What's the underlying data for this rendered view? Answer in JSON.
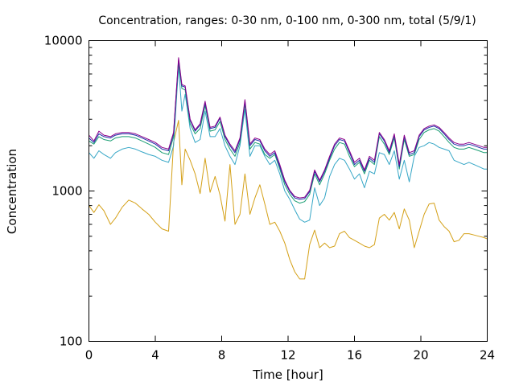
{
  "chart_data": {
    "type": "line",
    "title": "Concentration, ranges: 0-30 nm, 0-100 nm, 0-300 nm, total (5/9/1)",
    "xlabel": "Time [hour]",
    "ylabel": "Concentration",
    "xlim": [
      0,
      24
    ],
    "ylim": [
      100,
      10000
    ],
    "yscale": "log",
    "grid": false,
    "legend": "none",
    "xticks": [
      0,
      4,
      8,
      12,
      16,
      20,
      24
    ],
    "yticks": [
      100,
      1000,
      10000
    ],
    "xtick_labels": [
      "0",
      "4",
      "8",
      "12",
      "16",
      "20",
      "24"
    ],
    "ytick_labels": [
      "100",
      "1000",
      "10000"
    ],
    "series": [
      {
        "color": "#d4a017",
        "x": [
          0,
          0.3,
          0.6,
          0.9,
          1.3,
          1.6,
          2.0,
          2.4,
          2.8,
          3.2,
          3.6,
          4.0,
          4.4,
          4.8,
          5.1,
          5.4,
          5.6,
          5.8,
          6.1,
          6.4,
          6.7,
          7.0,
          7.3,
          7.6,
          7.9,
          8.2,
          8.5,
          8.8,
          9.1,
          9.4,
          9.7,
          10.0,
          10.3,
          10.6,
          10.9,
          11.2,
          11.5,
          11.8,
          12.1,
          12.4,
          12.7,
          13.0,
          13.3,
          13.6,
          13.9,
          14.2,
          14.5,
          14.8,
          15.1,
          15.4,
          15.7,
          16.0,
          16.3,
          16.6,
          16.9,
          17.2,
          17.5,
          17.8,
          18.1,
          18.4,
          18.7,
          19.0,
          19.3,
          19.6,
          19.9,
          20.2,
          20.5,
          20.8,
          21.1,
          21.4,
          21.7,
          22.0,
          22.3,
          22.6,
          22.9,
          23.2,
          23.5,
          23.8,
          24.0
        ],
        "y": [
          800,
          720,
          810,
          740,
          600,
          660,
          780,
          870,
          830,
          760,
          700,
          620,
          560,
          540,
          2100,
          2950,
          1100,
          1900,
          1600,
          1300,
          960,
          1650,
          980,
          1250,
          940,
          630,
          1500,
          600,
          700,
          1300,
          700,
          900,
          1100,
          820,
          600,
          620,
          540,
          450,
          350,
          290,
          260,
          260,
          440,
          550,
          420,
          450,
          420,
          430,
          520,
          540,
          490,
          470,
          450,
          430,
          420,
          440,
          660,
          700,
          640,
          720,
          560,
          760,
          640,
          420,
          540,
          700,
          820,
          830,
          640,
          580,
          540,
          460,
          470,
          520,
          520,
          510,
          500,
          490,
          480
        ]
      },
      {
        "color": "#35a6c6",
        "x": [
          0,
          0.3,
          0.6,
          0.9,
          1.3,
          1.6,
          2.0,
          2.4,
          2.8,
          3.2,
          3.6,
          4.0,
          4.4,
          4.8,
          5.1,
          5.4,
          5.6,
          5.8,
          6.1,
          6.4,
          6.7,
          7.0,
          7.3,
          7.6,
          7.9,
          8.2,
          8.5,
          8.8,
          9.1,
          9.4,
          9.7,
          10.0,
          10.3,
          10.6,
          10.9,
          11.2,
          11.5,
          11.8,
          12.1,
          12.4,
          12.7,
          13.0,
          13.3,
          13.6,
          13.9,
          14.2,
          14.5,
          14.8,
          15.1,
          15.4,
          15.7,
          16.0,
          16.3,
          16.6,
          16.9,
          17.2,
          17.5,
          17.8,
          18.1,
          18.4,
          18.7,
          19.0,
          19.3,
          19.6,
          19.9,
          20.2,
          20.5,
          20.8,
          21.1,
          21.4,
          21.7,
          22.0,
          22.3,
          22.6,
          22.9,
          23.2,
          23.5,
          23.8,
          24.0
        ],
        "y": [
          1800,
          1650,
          1850,
          1750,
          1650,
          1800,
          1900,
          1950,
          1900,
          1820,
          1750,
          1700,
          1600,
          1550,
          2000,
          6800,
          3400,
          4400,
          2600,
          2100,
          2200,
          3400,
          2300,
          2300,
          2600,
          2000,
          1700,
          1500,
          2000,
          3500,
          1700,
          2000,
          2000,
          1700,
          1500,
          1600,
          1300,
          1000,
          880,
          750,
          650,
          620,
          640,
          1050,
          800,
          900,
          1250,
          1500,
          1650,
          1600,
          1400,
          1200,
          1300,
          1050,
          1350,
          1300,
          1800,
          1750,
          1500,
          1850,
          1200,
          1600,
          1150,
          1700,
          1950,
          2000,
          2100,
          2050,
          1950,
          1900,
          1850,
          1600,
          1550,
          1500,
          1550,
          1500,
          1450,
          1400,
          1400
        ]
      },
      {
        "color": "#1a9e73",
        "x": [
          0,
          0.3,
          0.6,
          0.9,
          1.3,
          1.6,
          2.0,
          2.4,
          2.8,
          3.2,
          3.6,
          4.0,
          4.4,
          4.8,
          5.1,
          5.4,
          5.6,
          5.8,
          6.1,
          6.4,
          6.7,
          7.0,
          7.3,
          7.6,
          7.9,
          8.2,
          8.5,
          8.8,
          9.1,
          9.4,
          9.7,
          10.0,
          10.3,
          10.6,
          10.9,
          11.2,
          11.5,
          11.8,
          12.1,
          12.4,
          12.7,
          13.0,
          13.3,
          13.6,
          13.9,
          14.2,
          14.5,
          14.8,
          15.1,
          15.4,
          15.7,
          16.0,
          16.3,
          16.6,
          16.9,
          17.2,
          17.5,
          17.8,
          18.1,
          18.4,
          18.7,
          19.0,
          19.3,
          19.6,
          19.9,
          20.2,
          20.5,
          20.8,
          21.1,
          21.4,
          21.7,
          22.0,
          22.3,
          22.6,
          22.9,
          23.2,
          23.5,
          23.8,
          24.0
        ],
        "y": [
          2150,
          2050,
          2300,
          2200,
          2150,
          2250,
          2300,
          2300,
          2250,
          2150,
          2050,
          1950,
          1800,
          1750,
          2300,
          7100,
          4800,
          4700,
          2800,
          2400,
          2600,
          3700,
          2500,
          2550,
          2900,
          2200,
          1900,
          1700,
          2100,
          3800,
          1900,
          2100,
          2050,
          1750,
          1650,
          1750,
          1400,
          1100,
          950,
          860,
          830,
          850,
          950,
          1300,
          1100,
          1300,
          1600,
          1900,
          2100,
          2050,
          1700,
          1450,
          1550,
          1300,
          1600,
          1500,
          2300,
          2050,
          1750,
          2250,
          1400,
          2200,
          1700,
          1750,
          2200,
          2450,
          2550,
          2600,
          2500,
          2300,
          2100,
          1950,
          1900,
          1900,
          1950,
          1900,
          1850,
          1800,
          1800
        ]
      },
      {
        "color": "#1c2fa8",
        "x": [
          0,
          0.3,
          0.6,
          0.9,
          1.3,
          1.6,
          2.0,
          2.4,
          2.8,
          3.2,
          3.6,
          4.0,
          4.4,
          4.8,
          5.1,
          5.4,
          5.6,
          5.8,
          6.1,
          6.4,
          6.7,
          7.0,
          7.3,
          7.6,
          7.9,
          8.2,
          8.5,
          8.8,
          9.1,
          9.4,
          9.7,
          10.0,
          10.3,
          10.6,
          10.9,
          11.2,
          11.5,
          11.8,
          12.1,
          12.4,
          12.7,
          13.0,
          13.3,
          13.6,
          13.9,
          14.2,
          14.5,
          14.8,
          15.1,
          15.4,
          15.7,
          16.0,
          16.3,
          16.6,
          16.9,
          17.2,
          17.5,
          17.8,
          18.1,
          18.4,
          18.7,
          19.0,
          19.3,
          19.6,
          19.9,
          20.2,
          20.5,
          20.8,
          21.1,
          21.4,
          21.7,
          22.0,
          22.3,
          22.6,
          22.9,
          23.2,
          23.5,
          23.8,
          24.0
        ],
        "y": [
          2250,
          2100,
          2400,
          2300,
          2250,
          2350,
          2400,
          2400,
          2350,
          2250,
          2150,
          2050,
          1900,
          1850,
          2400,
          7500,
          5000,
          4900,
          2950,
          2500,
          2750,
          3850,
          2600,
          2650,
          3050,
          2300,
          2000,
          1800,
          2200,
          3950,
          2000,
          2200,
          2150,
          1850,
          1700,
          1800,
          1450,
          1150,
          990,
          900,
          880,
          890,
          990,
          1350,
          1150,
          1350,
          1650,
          2000,
          2200,
          2150,
          1800,
          1500,
          1600,
          1350,
          1650,
          1550,
          2400,
          2150,
          1800,
          2350,
          1450,
          2300,
          1750,
          1800,
          2300,
          2550,
          2650,
          2700,
          2600,
          2400,
          2200,
          2050,
          2000,
          2000,
          2050,
          2000,
          1950,
          1900,
          1900
        ]
      },
      {
        "color": "#8b008b",
        "x": [
          0,
          0.3,
          0.6,
          0.9,
          1.3,
          1.6,
          2.0,
          2.4,
          2.8,
          3.2,
          3.6,
          4.0,
          4.4,
          4.8,
          5.1,
          5.4,
          5.6,
          5.8,
          6.1,
          6.4,
          6.7,
          7.0,
          7.3,
          7.6,
          7.9,
          8.2,
          8.5,
          8.8,
          9.1,
          9.4,
          9.7,
          10.0,
          10.3,
          10.6,
          10.9,
          11.2,
          11.5,
          11.8,
          12.1,
          12.4,
          12.7,
          13.0,
          13.3,
          13.6,
          13.9,
          14.2,
          14.5,
          14.8,
          15.1,
          15.4,
          15.7,
          16.0,
          16.3,
          16.6,
          16.9,
          17.2,
          17.5,
          17.8,
          18.1,
          18.4,
          18.7,
          19.0,
          19.3,
          19.6,
          19.9,
          20.2,
          20.5,
          20.8,
          21.1,
          21.4,
          21.7,
          22.0,
          22.3,
          22.6,
          22.9,
          23.2,
          23.5,
          23.8,
          24.0
        ],
        "y": [
          2350,
          2150,
          2500,
          2350,
          2300,
          2400,
          2450,
          2450,
          2400,
          2300,
          2200,
          2100,
          1950,
          1900,
          2450,
          7700,
          5100,
          5000,
          3000,
          2550,
          2800,
          3950,
          2650,
          2700,
          3100,
          2350,
          2050,
          1850,
          2250,
          4050,
          2050,
          2250,
          2200,
          1900,
          1750,
          1850,
          1500,
          1180,
          1010,
          920,
          900,
          910,
          1010,
          1380,
          1180,
          1380,
          1700,
          2050,
          2250,
          2200,
          1850,
          1550,
          1650,
          1380,
          1700,
          1600,
          2450,
          2200,
          1850,
          2400,
          1500,
          2350,
          1800,
          1850,
          2350,
          2600,
          2700,
          2750,
          2650,
          2450,
          2250,
          2100,
          2050,
          2050,
          2100,
          2050,
          2000,
          1950,
          1950
        ]
      }
    ]
  }
}
